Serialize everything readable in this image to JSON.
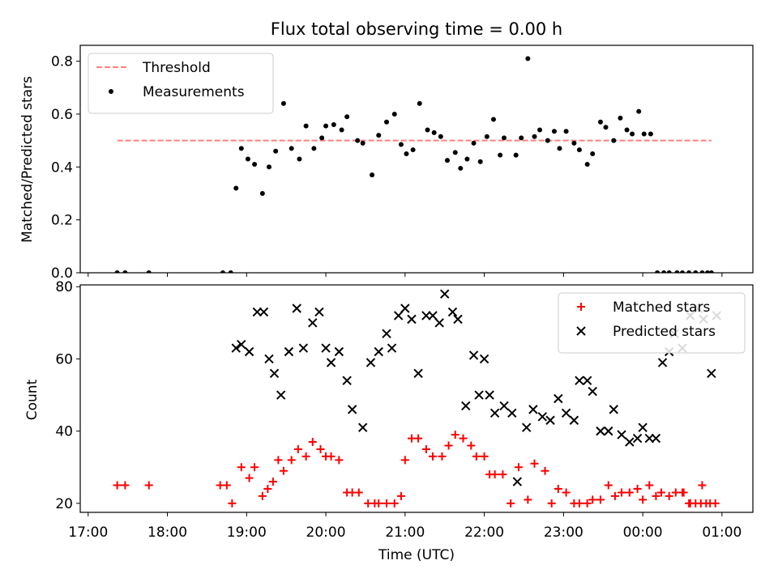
{
  "title": "Flux total observing time = 0.00 h",
  "chart_data": [
    {
      "type": "scatter",
      "ylabel": "Matched/Predicted stars",
      "xlabel": "",
      "xlim": [
        "17:00",
        "01:00"
      ],
      "ylim": [
        0,
        0.86
      ],
      "yticks": [
        0,
        0.2,
        0.4,
        0.6,
        0.8
      ],
      "ytick_labels": [
        "0.0",
        "0.2",
        "0.4",
        "0.6",
        "0.8"
      ],
      "grid": false,
      "legend_position": "upper-left",
      "threshold": {
        "name": "Threshold",
        "value": 0.5,
        "x_start": "17:22",
        "x_end": "00:52",
        "color": "#ff7f7f",
        "style": "dashed"
      },
      "series": [
        {
          "name": "Measurements",
          "color": "#000000",
          "marker": "dot",
          "x": [
            "17:22",
            "17:28",
            "17:46",
            "18:42",
            "18:48",
            "18:52",
            "18:56",
            "19:01",
            "19:06",
            "19:12",
            "19:17",
            "19:22",
            "19:28",
            "19:34",
            "19:40",
            "19:45",
            "19:51",
            "19:57",
            "20:00",
            "20:06",
            "20:12",
            "20:16",
            "20:24",
            "20:28",
            "20:35",
            "20:40",
            "20:46",
            "20:52",
            "20:57",
            "21:01",
            "21:06",
            "21:11",
            "21:17",
            "21:22",
            "21:27",
            "21:32",
            "21:38",
            "21:42",
            "21:47",
            "21:52",
            "21:57",
            "22:02",
            "22:07",
            "22:12",
            "22:15",
            "22:24",
            "22:28",
            "22:33",
            "22:38",
            "22:42",
            "22:48",
            "22:53",
            "22:57",
            "23:02",
            "23:08",
            "23:12",
            "23:18",
            "23:22",
            "23:28",
            "23:32",
            "23:38",
            "23:43",
            "23:48",
            "23:52",
            "23:57",
            "00:01",
            "00:06",
            "00:11",
            "00:16",
            "00:20",
            "00:26",
            "00:30",
            "00:35",
            "00:40",
            "00:45",
            "00:49",
            "00:52"
          ],
          "y": [
            0,
            0,
            0,
            0,
            0,
            0.32,
            0.47,
            0.43,
            0.41,
            0.3,
            0.4,
            0.46,
            0.64,
            0.47,
            0.43,
            0.555,
            0.47,
            0.51,
            0.555,
            0.56,
            0.54,
            0.59,
            0.5,
            0.49,
            0.37,
            0.52,
            0.57,
            0.6,
            0.485,
            0.45,
            0.465,
            0.64,
            0.54,
            0.53,
            0.515,
            0.425,
            0.455,
            0.395,
            0.43,
            0.49,
            0.42,
            0.515,
            0.58,
            0.445,
            0.51,
            0.445,
            0.51,
            0.81,
            0.515,
            0.54,
            0.5,
            0.535,
            0.47,
            0.535,
            0.49,
            0.465,
            0.41,
            0.45,
            0.57,
            0.55,
            0.5,
            0.585,
            0.54,
            0.525,
            0.61,
            0.525,
            0.525,
            0,
            0,
            0,
            0,
            0,
            0,
            0,
            0,
            0,
            0
          ]
        }
      ]
    },
    {
      "type": "scatter",
      "ylabel": "Count",
      "xlabel": "Time (UTC)",
      "xlim": [
        "17:00",
        "01:00"
      ],
      "ylim": [
        17.5,
        80.5
      ],
      "yticks": [
        20,
        40,
        60,
        80
      ],
      "ytick_labels": [
        "20",
        "40",
        "60",
        "80"
      ],
      "xtick_labels": [
        "17:00",
        "18:00",
        "19:00",
        "20:00",
        "21:00",
        "22:00",
        "23:00",
        "00:00",
        "01:00"
      ],
      "grid": false,
      "legend_position": "upper-right",
      "series": [
        {
          "name": "Matched stars",
          "color": "#ff0000",
          "marker": "plus",
          "x": [
            "17:22",
            "17:28",
            "17:46",
            "18:40",
            "18:45",
            "18:49",
            "18:56",
            "19:02",
            "19:06",
            "19:12",
            "19:16",
            "19:20",
            "19:24",
            "19:28",
            "19:34",
            "19:39",
            "19:45",
            "19:50",
            "19:56",
            "20:00",
            "20:04",
            "20:10",
            "20:16",
            "20:20",
            "20:25",
            "20:32",
            "20:37",
            "20:40",
            "20:46",
            "20:52",
            "20:57",
            "21:00",
            "21:05",
            "21:10",
            "21:16",
            "21:21",
            "21:28",
            "21:33",
            "21:38",
            "21:44",
            "21:50",
            "21:54",
            "22:00",
            "22:04",
            "22:08",
            "22:14",
            "22:20",
            "22:26",
            "22:33",
            "22:38",
            "22:46",
            "22:51",
            "22:56",
            "23:02",
            "23:08",
            "23:12",
            "23:18",
            "23:22",
            "23:28",
            "23:34",
            "23:39",
            "23:44",
            "23:50",
            "23:56",
            "00:00",
            "00:05",
            "00:10",
            "00:14",
            "00:20",
            "00:25",
            "00:30",
            "00:35",
            "00:40",
            "00:45",
            "00:51",
            "00:55",
            "00:48",
            "00:44",
            "00:36",
            "00:31"
          ],
          "y": [
            25,
            25,
            25,
            25,
            25,
            20,
            30,
            27,
            30,
            22,
            24,
            26,
            32,
            29,
            32,
            35,
            33,
            37,
            35,
            33,
            33,
            32,
            23,
            23,
            23,
            20,
            20,
            20,
            20,
            20,
            22,
            32,
            38,
            38,
            35,
            33,
            33,
            36,
            39,
            38,
            36,
            33,
            33,
            28,
            28,
            28,
            20,
            30,
            21,
            31,
            29,
            20,
            24,
            23,
            20,
            20,
            20,
            21,
            21,
            25,
            22,
            23,
            23,
            24,
            21,
            25,
            22,
            23,
            22,
            23,
            23,
            20,
            20,
            25,
            20,
            20,
            20,
            20,
            20,
            23
          ]
        },
        {
          "name": "Predicted stars",
          "color": "#000000",
          "marker": "x",
          "x": [
            "18:52",
            "18:56",
            "19:02",
            "19:08",
            "19:13",
            "19:17",
            "19:21",
            "19:26",
            "19:32",
            "19:38",
            "19:43",
            "19:50",
            "19:55",
            "20:00",
            "20:04",
            "20:10",
            "20:16",
            "20:20",
            "20:28",
            "20:34",
            "20:40",
            "20:46",
            "20:50",
            "20:55",
            "21:00",
            "21:05",
            "21:10",
            "21:16",
            "21:21",
            "21:26",
            "21:30",
            "21:36",
            "21:40",
            "21:46",
            "21:52",
            "21:56",
            "22:00",
            "22:04",
            "22:08",
            "22:15",
            "22:21",
            "22:25",
            "22:32",
            "22:37",
            "22:44",
            "22:50",
            "22:56",
            "23:02",
            "23:08",
            "23:12",
            "23:18",
            "23:22",
            "23:28",
            "23:34",
            "23:38",
            "23:44",
            "23:50",
            "23:56",
            "00:00",
            "00:05",
            "00:10",
            "00:15",
            "00:20",
            "00:24",
            "00:30",
            "00:36",
            "00:42",
            "00:46",
            "00:52",
            "00:56"
          ],
          "y": [
            63,
            64,
            62,
            73,
            73,
            60,
            56,
            50,
            62,
            74,
            63,
            70,
            73,
            63,
            59,
            62,
            54,
            46,
            41,
            59,
            62,
            67,
            63,
            72,
            74,
            71,
            56,
            72,
            72,
            70,
            78,
            73,
            71,
            47,
            61,
            50,
            60,
            50,
            45,
            47,
            45,
            26,
            41,
            46,
            44,
            43,
            49,
            45,
            43,
            54,
            54,
            51,
            40,
            40,
            46,
            39,
            37,
            38,
            41,
            38,
            38,
            59,
            62,
            67,
            63,
            72,
            74,
            71,
            56,
            72
          ]
        }
      ]
    }
  ]
}
